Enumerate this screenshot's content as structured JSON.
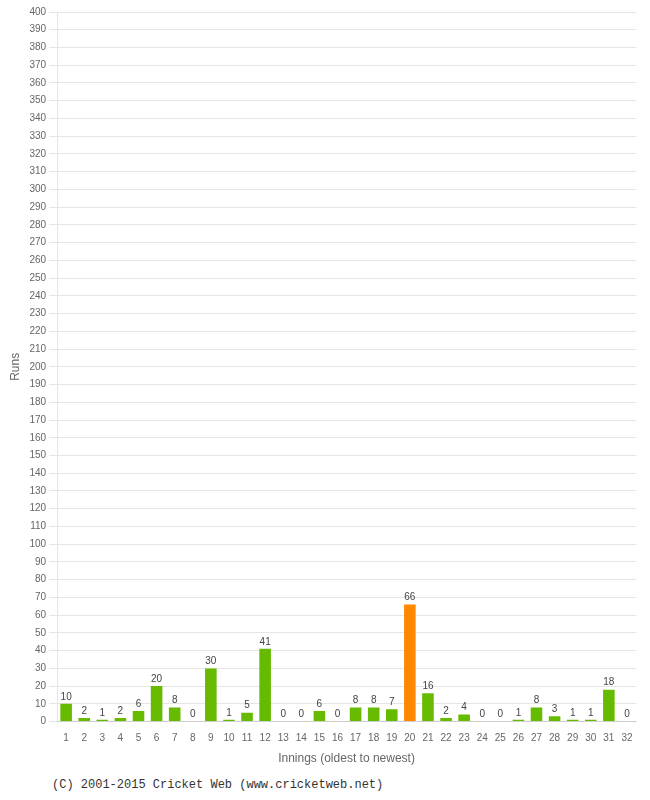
{
  "chart_data": {
    "type": "bar",
    "xlabel": "Innings (oldest to newest)",
    "ylabel": "Runs",
    "categories": [
      "1",
      "2",
      "3",
      "4",
      "5",
      "6",
      "7",
      "8",
      "9",
      "10",
      "11",
      "12",
      "13",
      "14",
      "15",
      "16",
      "17",
      "18",
      "19",
      "20",
      "21",
      "22",
      "23",
      "24",
      "25",
      "26",
      "27",
      "28",
      "29",
      "30",
      "31",
      "32"
    ],
    "values": [
      10,
      2,
      1,
      2,
      6,
      20,
      8,
      0,
      30,
      1,
      5,
      41,
      0,
      0,
      6,
      0,
      8,
      8,
      7,
      66,
      16,
      2,
      4,
      0,
      0,
      1,
      8,
      3,
      1,
      1,
      18,
      0
    ],
    "colors": [
      "#66bb00",
      "#66bb00",
      "#66bb00",
      "#66bb00",
      "#66bb00",
      "#66bb00",
      "#66bb00",
      "#66bb00",
      "#66bb00",
      "#66bb00",
      "#66bb00",
      "#66bb00",
      "#66bb00",
      "#66bb00",
      "#66bb00",
      "#66bb00",
      "#66bb00",
      "#66bb00",
      "#66bb00",
      "#ff8800",
      "#66bb00",
      "#66bb00",
      "#66bb00",
      "#66bb00",
      "#66bb00",
      "#66bb00",
      "#66bb00",
      "#66bb00",
      "#66bb00",
      "#66bb00",
      "#66bb00",
      "#66bb00"
    ],
    "ylim": [
      0,
      400
    ],
    "yticks": [
      0,
      10,
      20,
      30,
      40,
      50,
      60,
      70,
      80,
      90,
      100,
      110,
      120,
      130,
      140,
      150,
      160,
      170,
      180,
      190,
      200,
      210,
      220,
      230,
      240,
      250,
      260,
      270,
      280,
      290,
      300,
      310,
      320,
      330,
      340,
      350,
      360,
      370,
      380,
      390,
      400
    ],
    "grid": true,
    "data_labels": true,
    "annotations": [
      "(C) 2001-2015 Cricket Web (www.cricketweb.net)"
    ]
  }
}
